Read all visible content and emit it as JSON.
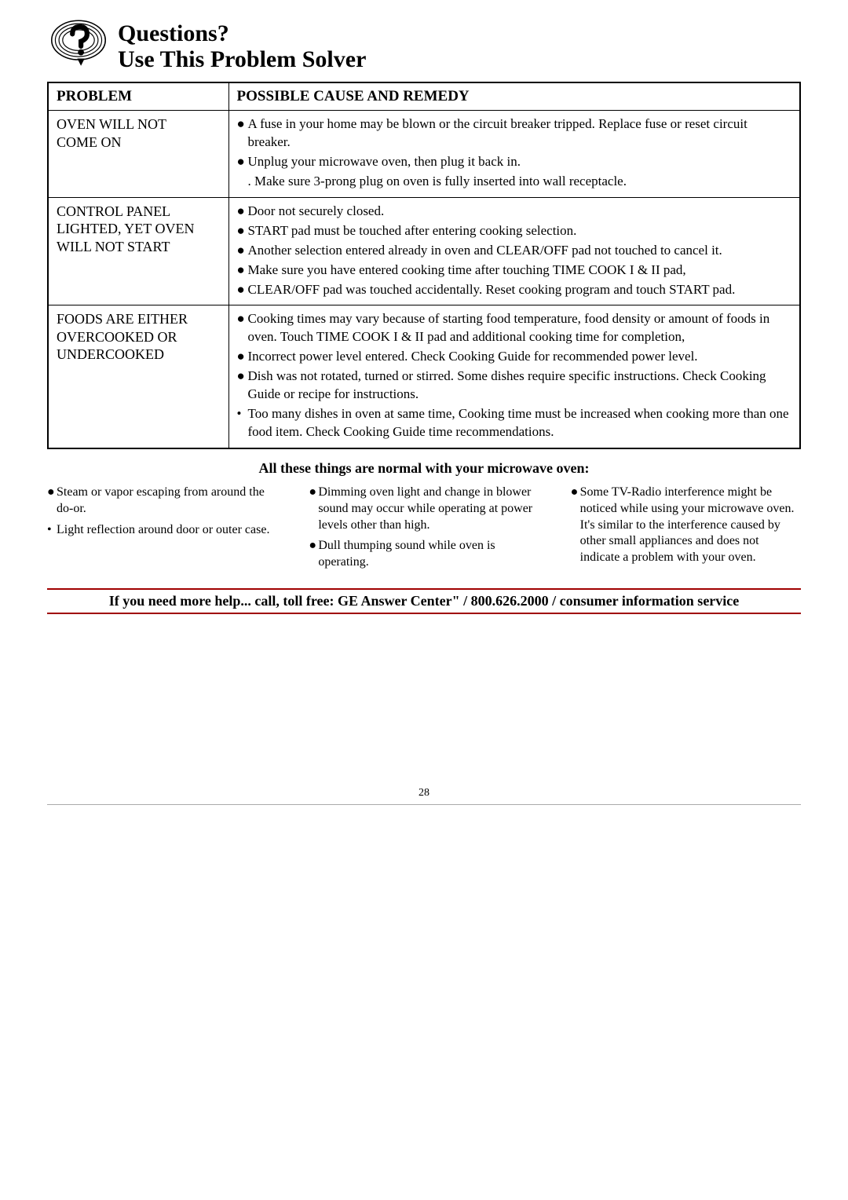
{
  "header": {
    "line1": "Questions?",
    "line2_part1": "Use This Problem ",
    "line2_part2": "Solver"
  },
  "table": {
    "col1_header": "PROBLEM",
    "col2_header": "POSSIBLE CAUSE AND REMEDY",
    "rows": [
      {
        "problem_lines": [
          "OVEN WILL NOT",
          "COME ON"
        ],
        "remedies": [
          "A fuse in your home may be blown or the circuit breaker tripped. Replace fuse or reset circuit breaker.",
          "Unplug your microwave oven, then plug it back in.",
          ". Make sure 3-prong plug on oven is fully inserted into wall receptacle."
        ],
        "bullet_markers": [
          "●",
          "●",
          ""
        ]
      },
      {
        "problem_lines": [
          "CONTROL PANEL",
          "LIGHTED, YET OVEN",
          "WILL NOT START"
        ],
        "remedies": [
          "Door not securely closed.",
          "START pad must be touched after entering cooking selection.",
          "Another selection entered already in oven and CLEAR/OFF pad not touched to cancel it.",
          "Make sure you have entered cooking time after touching TIME COOK I & II pad,",
          "CLEAR/OFF pad was touched accidentally. Reset cooking program and touch START pad."
        ],
        "bullet_markers": [
          "●",
          "●",
          "●",
          "●",
          "●"
        ]
      },
      {
        "problem_lines": [
          "FOODS ARE EITHER",
          "OVERCOOKED OR",
          "UNDERCOOKED"
        ],
        "remedies": [
          "Cooking times may vary because of starting food temperature, food density or amount of foods in oven. Touch TIME COOK I & II pad and additional cooking time for completion,",
          "Incorrect power level entered. Check Cooking Guide for recommended power level.",
          "Dish was not rotated, turned or stirred. Some dishes require specific instructions. Check Cooking Guide or recipe for instructions.",
          "Too many dishes in oven at same time, Cooking time must be increased when cooking more than one food item. Check Cooking Guide time recommendations."
        ],
        "bullet_markers": [
          "●",
          "●",
          "●",
          "•"
        ]
      }
    ]
  },
  "normal_heading": "All these things are normal with your microwave oven:",
  "normal_columns": {
    "col1": [
      "Steam or vapor escaping from around the do-or.",
      "Light reflection around door or outer case."
    ],
    "col1_markers": [
      "●",
      "•"
    ],
    "col2": [
      "Dimming oven light and change in blower sound may occur while operating at power levels other than high.",
      "Dull thumping sound while oven is operating."
    ],
    "col2_markers": [
      "●",
      "●"
    ],
    "col3": [
      "Some TV-Radio interference might be noticed while using your microwave oven. It's similar to the interference caused by other small appliances and does not indicate a problem with your oven."
    ],
    "col3_markers": [
      "●"
    ]
  },
  "help_line": "If you need more help... call, toll free: GE Answer Center\" / 800.626.2000 / consumer information service",
  "page_number": "28",
  "colors": {
    "accent_red": "#a00000",
    "text": "#000000",
    "bg": "#ffffff",
    "rule_gray": "#aaaaaa"
  }
}
